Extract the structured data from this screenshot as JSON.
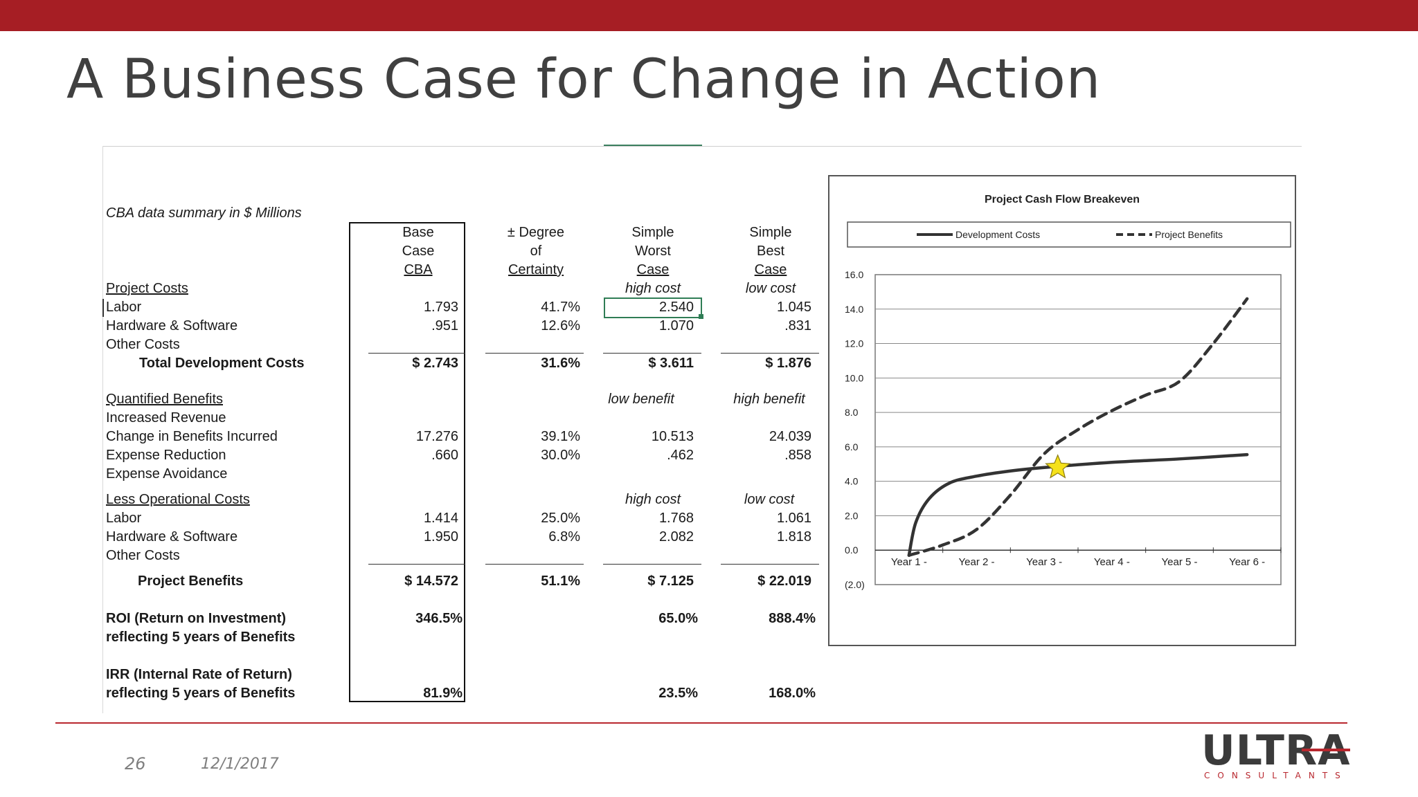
{
  "slide": {
    "title": "A Business Case for Change in Action",
    "page_number": "26",
    "date": "12/1/2017",
    "logo_text": "ULTRA",
    "logo_subtext": "CONSULTANTS",
    "accent_color": "#a61e24"
  },
  "table": {
    "summary_label": "CBA data summary in $ Millions",
    "headers": {
      "base": [
        "Base",
        "Case",
        "CBA"
      ],
      "degree": [
        "± Degree",
        "of",
        "Certainty"
      ],
      "worst": [
        "Simple",
        "Worst",
        "Case"
      ],
      "best": [
        "Simple",
        "Best",
        "Case"
      ]
    },
    "cost_section": {
      "title": "Project Costs",
      "worst_note": "high cost",
      "best_note": "low cost",
      "rows": [
        {
          "label": "Labor",
          "base": "1.793",
          "degree": "41.7%",
          "worst": "2.540",
          "best": "1.045"
        },
        {
          "label": "Hardware & Software",
          "base": ".951",
          "degree": "12.6%",
          "worst": "1.070",
          "best": ".831"
        },
        {
          "label": "Other Costs",
          "base": "",
          "degree": "",
          "worst": "",
          "best": ""
        }
      ],
      "total": {
        "label": "Total Development Costs",
        "base": "$ 2.743",
        "degree": "31.6%",
        "worst": "$ 3.611",
        "best": "$ 1.876"
      }
    },
    "benefit_section": {
      "title": "Quantified Benefits",
      "worst_note": "low benefit",
      "best_note": "high benefit",
      "rows": [
        {
          "label": "Increased Revenue",
          "base": "",
          "degree": "",
          "worst": "",
          "best": ""
        },
        {
          "label": "Change in Benefits Incurred",
          "base": "17.276",
          "degree": "39.1%",
          "worst": "10.513",
          "best": "24.039"
        },
        {
          "label": "Expense Reduction",
          "base": ".660",
          "degree": "30.0%",
          "worst": ".462",
          "best": ".858"
        },
        {
          "label": "Expense Avoidance",
          "base": "",
          "degree": "",
          "worst": "",
          "best": ""
        }
      ]
    },
    "opcost_section": {
      "title": "Less Operational Costs",
      "worst_note": "high cost",
      "best_note": "low cost",
      "rows": [
        {
          "label": "Labor",
          "base": "1.414",
          "degree": "25.0%",
          "worst": "1.768",
          "best": "1.061"
        },
        {
          "label": "Hardware & Software",
          "base": "1.950",
          "degree": "6.8%",
          "worst": "2.082",
          "best": "1.818"
        },
        {
          "label": "Other Costs",
          "base": "",
          "degree": "",
          "worst": "",
          "best": ""
        }
      ],
      "total": {
        "label": "Project Benefits",
        "base": "$ 14.572",
        "degree": "51.1%",
        "worst": "$ 7.125",
        "best": "$ 22.019"
      }
    },
    "roi": {
      "label1": "ROI (Return on Investment)",
      "label2": "reflecting 5 years of Benefits",
      "base": "346.5%",
      "worst": "65.0%",
      "best": "888.4%"
    },
    "irr": {
      "label1": "IRR (Internal Rate of Return)",
      "label2": "reflecting 5 years of Benefits",
      "base": "81.9%",
      "worst": "23.5%",
      "best": "168.0%"
    }
  },
  "chart_data": {
    "type": "line",
    "title": "Project Cash Flow Breakeven",
    "categories": [
      "Year 1 -",
      "Year 2 -",
      "Year 3 -",
      "Year 4 -",
      "Year 5 -",
      "Year 6 -"
    ],
    "y_tick_labels": [
      "16.0",
      "14.0",
      "12.0",
      "10.0",
      "8.0",
      "6.0",
      "4.0",
      "2.0",
      "0.0",
      "(2.0)"
    ],
    "ylim": [
      -2,
      16
    ],
    "grid": true,
    "legend_position": "top",
    "series": [
      {
        "name": "Development Costs",
        "style": "solid",
        "color": "#333333",
        "x": [
          1,
          1.1,
          1.3,
          1.6,
          2.0,
          2.5,
          3.0,
          4.0,
          5.0,
          6.0
        ],
        "values": [
          -0.3,
          1.6,
          3.0,
          3.9,
          4.3,
          4.6,
          4.8,
          5.1,
          5.3,
          5.55
        ]
      },
      {
        "name": "Project Benefits",
        "style": "dashed",
        "color": "#333333",
        "x": [
          1,
          1.5,
          2.0,
          2.5,
          3.0,
          3.5,
          4.0,
          4.5,
          5.0,
          5.5,
          6.0
        ],
        "values": [
          -0.3,
          0.3,
          1.2,
          3.2,
          5.6,
          7.0,
          8.1,
          9.0,
          9.8,
          12.0,
          14.6
        ]
      }
    ],
    "annotation": {
      "type": "star",
      "x": 3.2,
      "y": 4.8,
      "color": "#f5e11a"
    }
  }
}
